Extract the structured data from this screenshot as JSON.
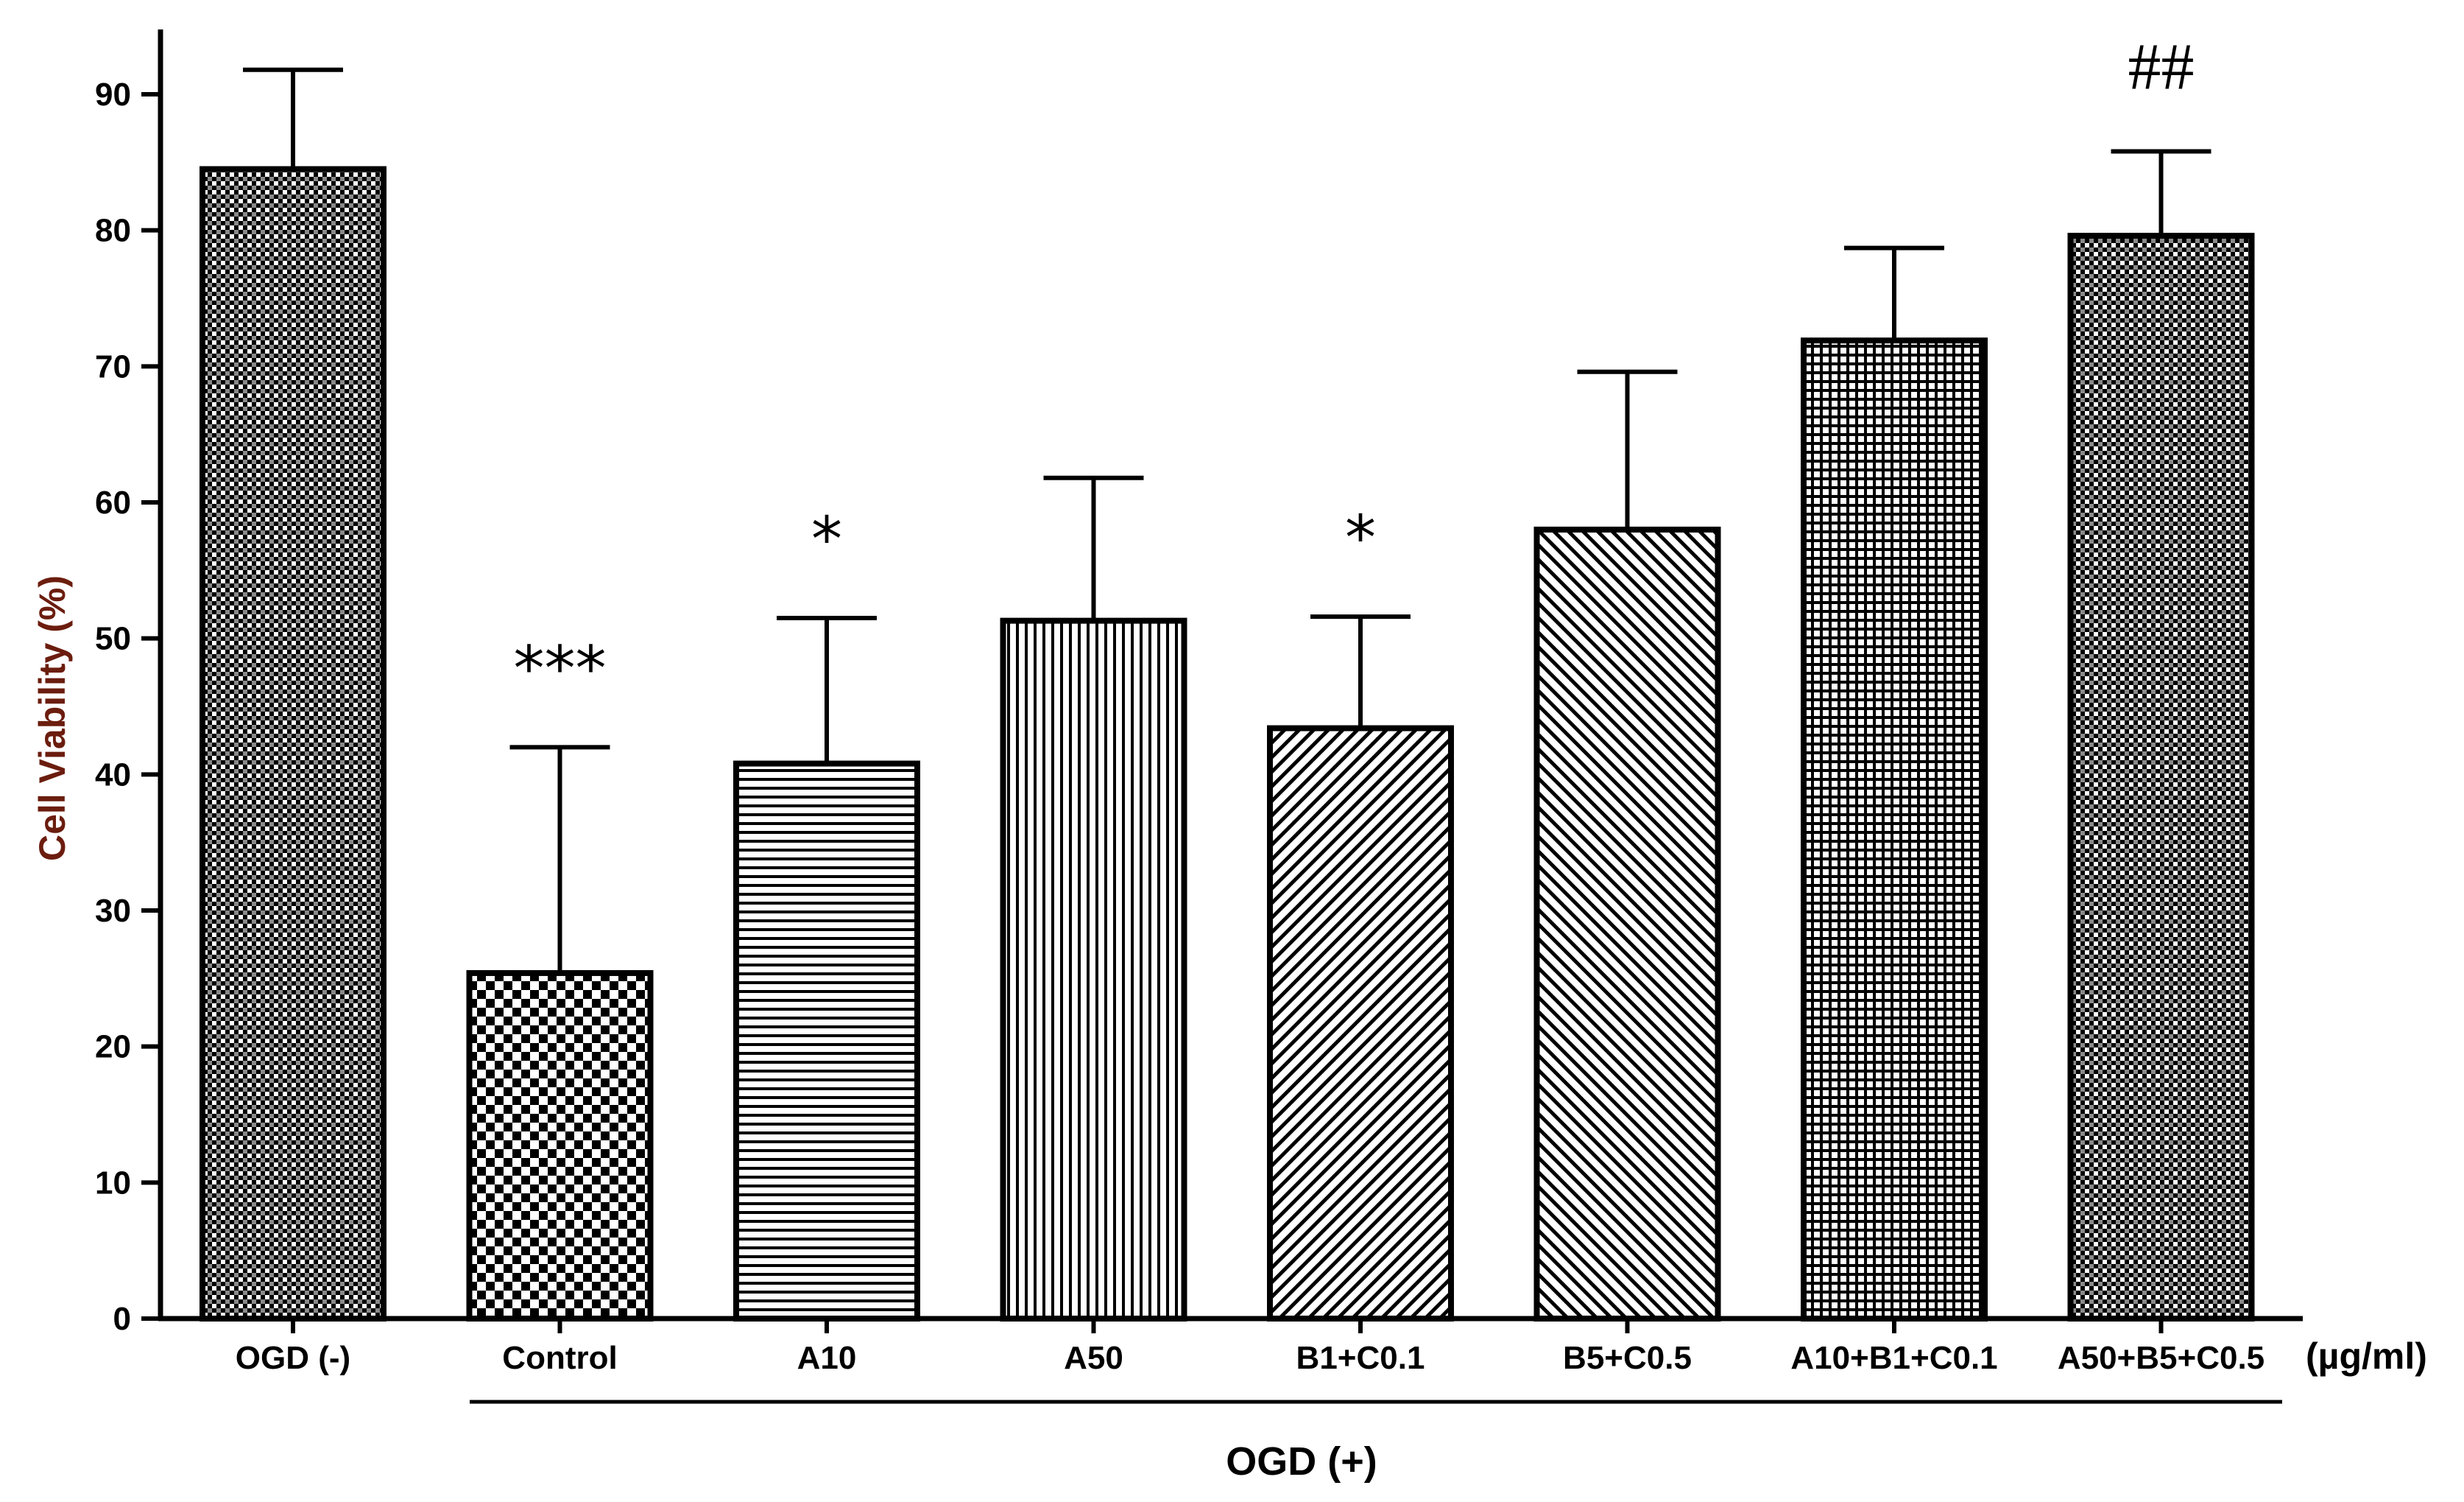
{
  "chart_data": {
    "type": "bar",
    "title": "",
    "xlabel": "",
    "ylabel": "Cell Viability (%)",
    "ylim": [
      0,
      90
    ],
    "yticks": [
      0,
      10,
      20,
      30,
      40,
      50,
      60,
      70,
      80,
      90
    ],
    "unit_label": "(µg/ml)",
    "group_label": "OGD (+)",
    "grid": false,
    "categories": [
      "OGD (-)",
      "Control",
      "A10",
      "A50",
      "B1+C0.1",
      "B5+C0.5",
      "A10+B1+C0.1",
      "A50+B5+C0.5"
    ],
    "series": [
      {
        "name": "Cell Viability",
        "values": [
          84.5,
          25.4,
          40.8,
          51.3,
          43.4,
          58.0,
          71.9,
          79.6
        ],
        "errors": [
          7.3,
          16.6,
          10.7,
          10.5,
          8.2,
          11.6,
          6.8,
          6.2
        ],
        "patterns": [
          "fine-check",
          "checker",
          "horizontal",
          "vertical",
          "diag-right",
          "diag-left",
          "grid",
          "fine-check"
        ]
      }
    ],
    "annotations": [
      {
        "category": "Control",
        "text": "***"
      },
      {
        "category": "A10",
        "text": "*"
      },
      {
        "category": "B1+C0.1",
        "text": "*"
      },
      {
        "category": "A50+B5+C0.5",
        "text": "##"
      }
    ]
  },
  "colors": {
    "axis": "#000000",
    "ylabel": "#6b1d0e",
    "background": "#ffffff"
  }
}
